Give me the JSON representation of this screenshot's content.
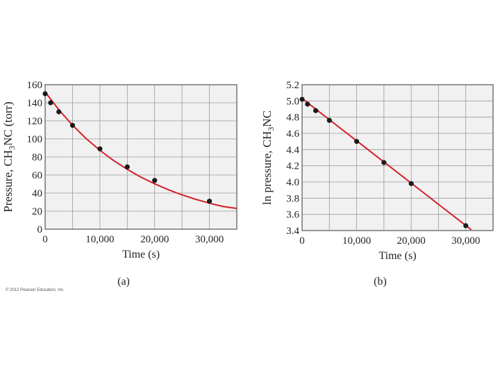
{
  "copyright": "© 2012 Pearson Education, Inc.",
  "colors": {
    "curve": "#d42027",
    "point": "#1a1a1a",
    "plot_bg": "#f1f1f1",
    "grid": "#9a9a9a",
    "frame": "#555555"
  },
  "chart_data": [
    {
      "type": "line",
      "panel_label": "(a)",
      "ylabel": "Pressure, CH3NC (torr)",
      "ylabel_parts": {
        "before": "Pressure, CH",
        "sub": "3",
        "after": "NC (torr)"
      },
      "xlabel": "Time (s)",
      "xlim": [
        0,
        35000
      ],
      "ylim": [
        0,
        160
      ],
      "xticks": [
        0,
        10000,
        20000,
        30000
      ],
      "xtick_labels": [
        "0",
        "10,000",
        "20,000",
        "30,000"
      ],
      "yticks": [
        0,
        20,
        40,
        60,
        80,
        100,
        120,
        140,
        160
      ],
      "ytick_labels": [
        "0",
        "20",
        "40",
        "60",
        "80",
        "100",
        "120",
        "140",
        "160"
      ],
      "grid": true,
      "series": [
        {
          "kind": "points",
          "x": [
            0,
            1000,
            2500,
            5000,
            10000,
            15000,
            20000,
            30000
          ],
          "y": [
            150,
            140,
            130,
            115,
            89,
            69,
            54,
            31
          ]
        },
        {
          "kind": "fit-curve",
          "x": [
            0,
            2500,
            5000,
            7500,
            10000,
            12500,
            15000,
            17500,
            20000,
            22500,
            25000,
            27500,
            30000,
            32500,
            35000
          ],
          "y": [
            152,
            132.3,
            115.2,
            100.3,
            87.3,
            76,
            66.2,
            57.6,
            50.2,
            43.7,
            38,
            33.1,
            28.8,
            25.1,
            23
          ]
        }
      ]
    },
    {
      "type": "line",
      "panel_label": "(b)",
      "ylabel": "ln pressure, CH3NC",
      "ylabel_parts": {
        "before": "ln pressure, CH",
        "sub": "3",
        "after": "NC"
      },
      "xlabel": "Time (s)",
      "xlim": [
        0,
        35000
      ],
      "ylim": [
        3.4,
        5.2
      ],
      "xticks": [
        0,
        10000,
        20000,
        30000
      ],
      "xtick_labels": [
        "0",
        "10,000",
        "20,000",
        "30,000"
      ],
      "yticks": [
        3.4,
        3.6,
        3.8,
        4.0,
        4.2,
        4.4,
        4.6,
        4.8,
        5.0,
        5.2
      ],
      "ytick_labels": [
        "3.4",
        "3.6",
        "3.8",
        "4.0",
        "4.2",
        "4.4",
        "4.6",
        "4.8",
        "5.0",
        "5.2"
      ],
      "grid": true,
      "series": [
        {
          "kind": "points",
          "x": [
            0,
            1000,
            2500,
            5000,
            10000,
            15000,
            20000,
            30000
          ],
          "y": [
            5.02,
            4.96,
            4.88,
            4.76,
            4.5,
            4.24,
            3.98,
            3.46
          ]
        },
        {
          "kind": "fit-line",
          "x": [
            0,
            31000
          ],
          "y": [
            5.03,
            3.41
          ]
        }
      ]
    }
  ]
}
